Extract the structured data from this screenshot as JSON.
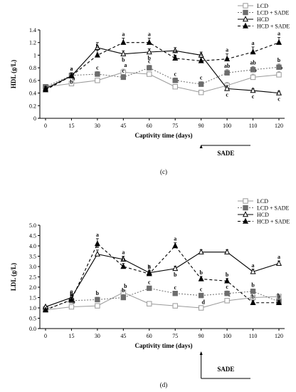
{
  "chart_data": [
    {
      "type": "line",
      "panel_label": "(c)",
      "ylabel": "HDL (g/L)",
      "xlabel": "Captivity time (days)",
      "x": [
        0,
        15,
        30,
        45,
        60,
        75,
        90,
        100,
        110,
        120
      ],
      "x_ticks": [
        "0",
        "15",
        "30",
        "45",
        "60",
        "75",
        "90",
        "100",
        "110",
        "120"
      ],
      "ylim": [
        0,
        1.4
      ],
      "y_ticks": [
        "0",
        "0.2",
        "0.4",
        "0.6",
        "0.8",
        "1",
        "1.2",
        "1.4"
      ],
      "grid": false,
      "legend_position": "top-right",
      "bracket_label": "SADE",
      "series": [
        {
          "name": "LCD",
          "marker": "open-square",
          "line": "solid-gray",
          "color": "#9a9a9a",
          "values": [
            0.5,
            0.55,
            0.6,
            0.73,
            0.7,
            0.5,
            0.41,
            0.52,
            0.65,
            0.69
          ],
          "errors": [
            0.03,
            0.02,
            0.03,
            0.05,
            0.03,
            0.03,
            0.03,
            0.05,
            0.05,
            0.05
          ],
          "labels": [
            "",
            "a",
            "",
            "a",
            "",
            "c",
            "",
            "",
            "b",
            "b"
          ]
        },
        {
          "name": "LCD + SADE",
          "marker": "filled-square",
          "line": "dotted-gray",
          "color": "#6d6d6d",
          "values": [
            0.5,
            0.68,
            0.7,
            0.65,
            0.8,
            0.6,
            0.54,
            0.72,
            0.77,
            0.81
          ],
          "errors": [
            0.03,
            0.04,
            0.04,
            0.04,
            0.04,
            0.04,
            0.04,
            0.05,
            0.05,
            0.05
          ],
          "labels": [
            "",
            "a",
            "c",
            "c",
            "c",
            "c",
            "c",
            "ab",
            "ab",
            "b"
          ]
        },
        {
          "name": "HCD",
          "marker": "open-triangle",
          "line": "solid-black",
          "color": "#000000",
          "values": [
            0.47,
            0.67,
            1.12,
            1.02,
            1.05,
            1.07,
            1.0,
            0.47,
            0.44,
            0.4
          ],
          "errors": [
            0.03,
            0.05,
            0.08,
            0.05,
            0.05,
            0.05,
            0.05,
            0.05,
            0.03,
            0.03
          ],
          "labels": [
            "",
            "b",
            "a",
            "b",
            "b",
            "b",
            "b",
            "c",
            "c",
            "c"
          ]
        },
        {
          "name": "HCD + SADE",
          "marker": "filled-triangle",
          "line": "dashed-black",
          "color": "#000000",
          "values": [
            0.45,
            0.67,
            1.0,
            1.2,
            1.2,
            0.95,
            0.91,
            0.94,
            1.05,
            1.2
          ],
          "errors": [
            0.03,
            0.05,
            0.08,
            0.07,
            0.07,
            0.05,
            0.05,
            0.08,
            0.08,
            0.08
          ],
          "labels": [
            "",
            "a",
            "b",
            "a",
            "a",
            "a",
            "a",
            "a",
            "a",
            "a"
          ]
        }
      ]
    },
    {
      "type": "line",
      "panel_label": "(d)",
      "ylabel": "LDL (g/L)",
      "xlabel": "Captivity time (days)",
      "x": [
        0,
        15,
        30,
        45,
        60,
        75,
        90,
        100,
        110,
        120
      ],
      "x_ticks": [
        "0",
        "15",
        "30",
        "45",
        "60",
        "75",
        "90",
        "100",
        "110",
        "120"
      ],
      "ylim": [
        0,
        5
      ],
      "y_ticks": [
        "0.0",
        "0.5",
        "1.0",
        "1.5",
        "2.0",
        "2.5",
        "3.0",
        "3.5",
        "4.0",
        "4.5",
        "5.0"
      ],
      "grid": false,
      "legend_position": "top-right",
      "bracket_label": "SADE",
      "series": [
        {
          "name": "LCD",
          "marker": "open-square",
          "line": "solid-gray",
          "color": "#9a9a9a",
          "values": [
            0.9,
            1.05,
            1.1,
            1.75,
            1.2,
            1.1,
            1.0,
            1.35,
            1.5,
            1.55
          ],
          "errors": [
            0.05,
            0.05,
            0.1,
            0.12,
            0.08,
            0.08,
            0.08,
            0.1,
            0.1,
            0.1
          ],
          "labels": [
            "",
            "b",
            "",
            "b",
            "",
            "",
            "d",
            "c",
            "",
            ""
          ]
        },
        {
          "name": "LCD + SADE",
          "marker": "filled-square",
          "line": "dotted-gray",
          "color": "#6d6d6d",
          "values": [
            0.95,
            1.35,
            1.4,
            1.5,
            1.95,
            1.7,
            1.6,
            1.7,
            1.8,
            1.3
          ],
          "errors": [
            0.05,
            0.1,
            0.12,
            0.15,
            0.1,
            0.1,
            0.1,
            0.12,
            0.12,
            0.1
          ],
          "labels": [
            "",
            "b",
            "b",
            "b",
            "c",
            "c",
            "c",
            "c",
            "b",
            "b"
          ]
        },
        {
          "name": "HCD",
          "marker": "open-triangle",
          "line": "solid-black",
          "color": "#000000",
          "values": [
            1.05,
            1.5,
            3.6,
            3.35,
            2.7,
            2.9,
            3.7,
            3.7,
            2.75,
            3.15
          ],
          "errors": [
            0.05,
            0.1,
            0.2,
            0.15,
            0.12,
            0.12,
            0.12,
            0.12,
            0.12,
            0.12
          ],
          "labels": [
            "",
            "a",
            "a",
            "a",
            "a",
            "b",
            "",
            "",
            "a",
            "a"
          ]
        },
        {
          "name": "HCD + SADE",
          "marker": "filled-triangle",
          "line": "dashed-black",
          "color": "#000000",
          "values": [
            0.9,
            1.4,
            4.1,
            3.0,
            2.65,
            4.0,
            2.4,
            2.3,
            1.25,
            1.25
          ],
          "errors": [
            0.05,
            0.1,
            0.25,
            0.15,
            0.12,
            0.15,
            0.12,
            0.12,
            0.1,
            0.1
          ],
          "labels": [
            "",
            "b",
            "a",
            "b",
            "b",
            "a",
            "b",
            "b",
            "b",
            "b"
          ]
        }
      ]
    }
  ]
}
